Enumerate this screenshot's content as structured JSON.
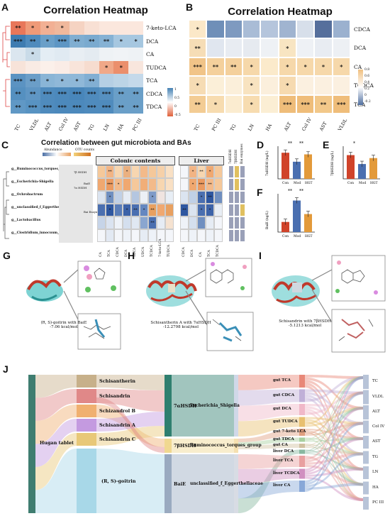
{
  "panels": {
    "A": {
      "letter": "A",
      "title": "Correlation Heatmap",
      "rows": [
        "7-keto-LCA",
        "DCA",
        "CA",
        "TUDCA",
        "TCA",
        "CDCA",
        "TDCA"
      ],
      "cols": [
        "TC",
        "VLDL",
        "ALT",
        "Col IV",
        "AST",
        "TG",
        "LN",
        "HA",
        "PC III"
      ],
      "stars": [
        [
          "**",
          "*",
          "*",
          "*",
          "",
          "",
          "",
          "",
          ""
        ],
        [
          "***",
          "**",
          "*",
          "***",
          "**",
          "**",
          "**",
          "*",
          "*"
        ],
        [
          "",
          "*",
          "",
          "",
          "",
          "",
          "",
          "",
          ""
        ],
        [
          "",
          "",
          "",
          "",
          "",
          "",
          "*",
          "*",
          ""
        ],
        [
          "***",
          "**",
          "*",
          "*",
          "*",
          "**",
          "",
          "",
          ""
        ],
        [
          "**",
          "**",
          "***",
          "***",
          "***",
          "***",
          "***",
          "**",
          "**"
        ],
        [
          "**",
          "***",
          "***",
          "***",
          "***",
          "***",
          "***",
          "**",
          "**"
        ]
      ],
      "legend_ticks": [
        "1",
        "0.5",
        "0",
        "-0.5"
      ]
    },
    "B": {
      "letter": "B",
      "title": "Correlation Heatmap",
      "rows": [
        "CDCA",
        "DCA",
        "CA",
        "TCDCA",
        "TCA"
      ],
      "cols": [
        "TC",
        "PC III",
        "TG",
        "LN",
        "HA",
        "ALT",
        "Col IV",
        "AST",
        "VLDL"
      ],
      "stars": [
        [
          "*",
          "",
          "",
          "",
          "",
          "",
          "",
          "",
          ""
        ],
        [
          "**",
          "",
          "",
          "",
          "",
          "*",
          "",
          "",
          ""
        ],
        [
          "***",
          "**",
          "**",
          "*",
          "",
          "*",
          "*",
          "*",
          "*"
        ],
        [
          "*",
          "",
          "",
          "*",
          "",
          "*",
          "",
          "",
          ""
        ],
        [
          "**",
          "*",
          "",
          "*",
          "",
          "***",
          "***",
          "**",
          "***"
        ]
      ],
      "legend_ticks": [
        "0.8",
        "0.6",
        "0.4",
        "0.2",
        "0",
        "-0.2"
      ]
    },
    "C": {
      "letter": "C",
      "title": "Correlation between gut microbiota and BAs",
      "abundance_label": "Abundance",
      "otu_label": "OTU counts",
      "genera": [
        "g__Ruminococcus_torques_group",
        "g__Escherichia-Shigella",
        "g__Ochrobactrum",
        "g__unclassified_f_Eggerthellaceae",
        "g__Lactobacillus",
        "g__Clostridium_innocuum_group"
      ],
      "mid_labels": [
        "7β HSDH",
        "7α HSDH",
        "BaiE",
        "Bai Enzymes"
      ],
      "colonic_header": "Colonic contents",
      "liver_header": "Liver",
      "colonic_cols": [
        "CA",
        "TCA",
        "CDCA",
        "DCA",
        "TDCA",
        "UDCA",
        "TCDCA",
        "7-keto-LCA",
        "TUDCA"
      ],
      "liver_cols": [
        "CDCA",
        "DCA",
        "CA",
        "TCA",
        "TCDCA"
      ],
      "side_cols": [
        "7αHSDH",
        "7βHSDH",
        "Bai enzymes"
      ]
    },
    "D": {
      "letter": "D",
      "ylabel": "7αHSDH (ng/L)",
      "groups": [
        "Con",
        "Mod",
        "HGT"
      ],
      "values": [
        3.2,
        2.1,
        3.0
      ],
      "sig": [
        "**",
        "**"
      ]
    },
    "E": {
      "letter": "E",
      "ylabel": "7βHSDH (ng/L)",
      "groups": [
        "Con",
        "Mod",
        "HGT"
      ],
      "values": [
        1.6,
        1.0,
        1.4
      ],
      "sig": [
        "*"
      ]
    },
    "F": {
      "letter": "F",
      "ylabel": "BaiE (ng/L)",
      "groups": [
        "Con",
        "Mod",
        "HGT"
      ],
      "values": [
        0.9,
        2.8,
        1.6
      ],
      "sig": [
        "**",
        "**"
      ]
    },
    "G": {
      "letter": "G",
      "caption_1": "(R, S)-goitrin with BaiE",
      "caption_2": "-7.06 kcal/mol"
    },
    "H": {
      "letter": "H",
      "caption_1": "Schisantherin A with 7αHSDH",
      "caption_2": "-12.2798 kcal/mol"
    },
    "I": {
      "letter": "I",
      "caption_1": "Schisandrin with 7βHSDH",
      "caption_2": "-5.1213 kcal/mol"
    },
    "J": {
      "letter": "J",
      "source": "Hugan tablet",
      "compounds": [
        "Schisantherin",
        "Schisandrin",
        "Schizandrol B",
        "Schisandrin A",
        "Schisandrin C",
        "(R, S)-goitrin"
      ],
      "enzymes": [
        "7αHSDH",
        "7βHSDH",
        "BaiE"
      ],
      "bacteria": [
        "Escherichia_Shigella",
        "Ruminococcus_torques_group",
        "unclassified_f_Eggerthellaceae"
      ],
      "bile_acids": [
        "gut TCA",
        "gut CDCA",
        "gut DCA",
        "gut TUDCA",
        "gut 7-keto LCA",
        "gut TDCA",
        "gut CA",
        "liver DCA",
        "liver TCA",
        "liver TCDCA",
        "liver CA"
      ],
      "indices": [
        "TC",
        "VLDL",
        "ALT",
        "Col IV",
        "AST",
        "TG",
        "LN",
        "HA",
        "PC III"
      ]
    }
  }
}
